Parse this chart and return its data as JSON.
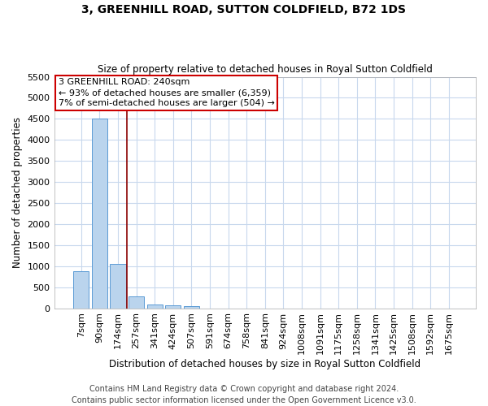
{
  "title": "3, GREENHILL ROAD, SUTTON COLDFIELD, B72 1DS",
  "subtitle": "Size of property relative to detached houses in Royal Sutton Coldfield",
  "xlabel": "Distribution of detached houses by size in Royal Sutton Coldfield",
  "ylabel": "Number of detached properties",
  "categories": [
    "7sqm",
    "90sqm",
    "174sqm",
    "257sqm",
    "341sqm",
    "424sqm",
    "507sqm",
    "591sqm",
    "674sqm",
    "758sqm",
    "841sqm",
    "924sqm",
    "1008sqm",
    "1091sqm",
    "1175sqm",
    "1258sqm",
    "1341sqm",
    "1425sqm",
    "1508sqm",
    "1592sqm",
    "1675sqm"
  ],
  "values": [
    880,
    4500,
    1060,
    290,
    80,
    60,
    50,
    0,
    0,
    0,
    0,
    0,
    0,
    0,
    0,
    0,
    0,
    0,
    0,
    0,
    0
  ],
  "bar_color": "#bad4ed",
  "bar_edge_color": "#5b9bd5",
  "vline_color": "#8b0000",
  "vline_position": 2.5,
  "annotation_text": "3 GREENHILL ROAD: 240sqm\n← 93% of detached houses are smaller (6,359)\n7% of semi-detached houses are larger (504) →",
  "annotation_box_color": "#cc0000",
  "ylim": [
    0,
    5500
  ],
  "yticks": [
    0,
    500,
    1000,
    1500,
    2000,
    2500,
    3000,
    3500,
    4000,
    4500,
    5000,
    5500
  ],
  "bg_color": "#ffffff",
  "grid_color": "#c8d8ed",
  "footer": "Contains HM Land Registry data © Crown copyright and database right 2024.\nContains public sector information licensed under the Open Government Licence v3.0.",
  "title_fontsize": 10,
  "subtitle_fontsize": 8.5,
  "xlabel_fontsize": 8.5,
  "ylabel_fontsize": 8.5,
  "tick_fontsize": 8,
  "annotation_fontsize": 8,
  "footer_fontsize": 7
}
